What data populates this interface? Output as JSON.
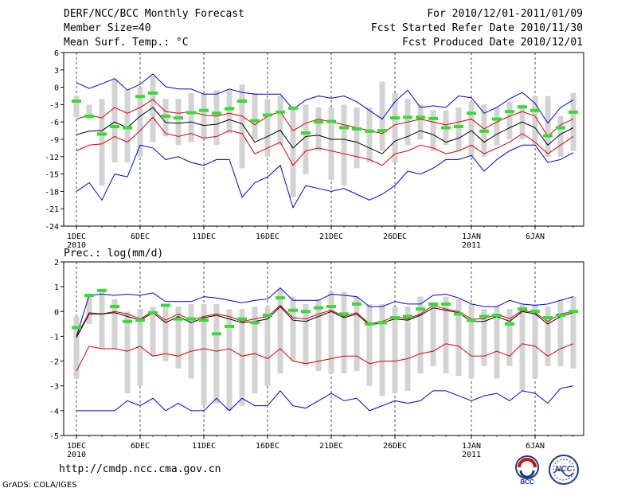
{
  "header": {
    "title": "DERF/NCC/BCC Monthly Forecast",
    "member_size": "Member Size=40",
    "variable": "Mean Surf. Temp.: °C",
    "period": "For 2010/12/01-2011/01/09",
    "started": "Fcst Started Refer Date 2010/11/30",
    "produced": "Fcst Produced Date 2010/12/01"
  },
  "footer": {
    "url": "http://cmdp.ncc.cma.gov.cn",
    "credit": "GrADS: COLA/IGES",
    "logo_left": "BCC",
    "logo_right": "NCC"
  },
  "colors": {
    "envelope": "#0000dd",
    "percentile": "#dd0000",
    "mean": "#000000",
    "box": "#d3d3d3",
    "marker": "#33dd33"
  },
  "chart_data": [
    {
      "type": "box-ensemble",
      "title": "Mean Surf. Temp.: °C",
      "ylabel": "°C",
      "ylim": [
        -24,
        6
      ],
      "yticks": [
        6,
        3,
        0,
        -3,
        -6,
        -9,
        -12,
        -15,
        -18,
        -21,
        -24
      ],
      "x": {
        "start": 1,
        "count": 40,
        "ticks": [
          {
            "day": 1,
            "label": "1DEC",
            "sub": "2010"
          },
          {
            "day": 6,
            "label": "6DEC",
            "sub": ""
          },
          {
            "day": 11,
            "label": "11DEC",
            "sub": ""
          },
          {
            "day": 16,
            "label": "16DEC",
            "sub": ""
          },
          {
            "day": 21,
            "label": "21DEC",
            "sub": ""
          },
          {
            "day": 26,
            "label": "26DEC",
            "sub": ""
          },
          {
            "day": 32,
            "label": "1JAN",
            "sub": "2011"
          },
          {
            "day": 37,
            "label": "6JAN",
            "sub": ""
          }
        ]
      },
      "box_low": [
        -5.2,
        -5.5,
        -17,
        -13,
        -13,
        -12,
        -9.5,
        -8.5,
        -10,
        -9.5,
        -9,
        -10,
        -8,
        -14,
        -9,
        -12,
        -10,
        -19,
        -15,
        -11,
        -16,
        -17,
        -14,
        -13,
        -11,
        -13,
        -10,
        -9,
        -11,
        -10,
        -11,
        -12,
        -12,
        -10,
        -9,
        -9,
        -10,
        -12,
        -12,
        -11
      ],
      "box_high": [
        -1.5,
        -3,
        -2,
        1.3,
        -0.5,
        0,
        2,
        -2,
        -2,
        -1,
        -1,
        -0.5,
        -0.5,
        0.5,
        -1,
        -2,
        -1.5,
        -3.5,
        -3,
        -3.5,
        -3.5,
        -3,
        -3.5,
        -3.5,
        1,
        -1,
        -2,
        -3,
        -4,
        -4,
        -3.5,
        -2.5,
        -3,
        -3.5,
        -2.5,
        -3,
        -1.5,
        -1.5,
        -5,
        -1
      ],
      "markers": [
        -2.4,
        -5,
        -8.1,
        -6.8,
        -7,
        -1.6,
        -1,
        -5,
        -5.3,
        -4.4,
        -4,
        -4.5,
        -3.7,
        -2.4,
        -5.8,
        -4.8,
        -4.3,
        -3.6,
        -7.9,
        -6,
        -5.9,
        -7,
        -7.2,
        -7.6,
        -7.5,
        -5.3,
        -5.2,
        -5.2,
        -5.4,
        -7,
        -6.8,
        -4.5,
        -7.6,
        -5.5,
        -4.2,
        -3.4,
        -4,
        -8.4,
        -7,
        -4.3
      ],
      "series": [
        {
          "name": "upper envelope",
          "color": "envelope",
          "values": [
            0.8,
            -0.2,
            0.6,
            1.5,
            -0.5,
            0.5,
            2.3,
            0.1,
            -0.3,
            -0.3,
            -1.2,
            -1.2,
            -0.3,
            -0.9,
            -1.2,
            -1.2,
            -1.2,
            -3.8,
            -2.2,
            -1.5,
            -1.9,
            -1.5,
            -2.5,
            -4,
            -5.5,
            -2.5,
            -0.5,
            -3.5,
            -3.2,
            -3.5,
            -1.5,
            -1.8,
            -4.5,
            -3.5,
            -2,
            -0.9,
            -2.8,
            -6.2,
            -3.5,
            -2.2
          ]
        },
        {
          "name": "upper percentile",
          "color": "percentile",
          "values": [
            -5.5,
            -4.8,
            -5.3,
            -3.5,
            -4.5,
            -3.5,
            -2.1,
            -4.2,
            -4.5,
            -4.2,
            -4.8,
            -5,
            -4.5,
            -5,
            -6.5,
            -5,
            -4.2,
            -7.5,
            -6.2,
            -5.5,
            -6,
            -6.5,
            -7,
            -7.5,
            -8,
            -6.5,
            -6,
            -5.5,
            -6,
            -6.5,
            -6,
            -5.5,
            -7.2,
            -6,
            -5,
            -4.2,
            -5,
            -8.5,
            -6.5,
            -5.5
          ]
        },
        {
          "name": "ensemble mean",
          "color": "mean",
          "values": [
            -8.2,
            -7.6,
            -7.5,
            -6,
            -7,
            -5,
            -3.5,
            -6.1,
            -6.2,
            -6,
            -6.6,
            -6.4,
            -5.6,
            -6.3,
            -9.5,
            -8.5,
            -7.4,
            -10.5,
            -8.5,
            -8.3,
            -9,
            -9,
            -9.5,
            -10.5,
            -11.5,
            -9.3,
            -8.5,
            -7.5,
            -8.2,
            -9.5,
            -8.8,
            -7.5,
            -9.5,
            -8.1,
            -7,
            -6,
            -7,
            -10,
            -8.1,
            -7
          ]
        },
        {
          "name": "lower percentile",
          "color": "percentile",
          "values": [
            -11,
            -10,
            -9.8,
            -8.5,
            -9.5,
            -7.5,
            -5.2,
            -8,
            -8.5,
            -8,
            -8.8,
            -8.5,
            -7.5,
            -8,
            -11.5,
            -10.5,
            -9.5,
            -13.5,
            -11,
            -10.5,
            -11,
            -11.5,
            -12,
            -12.5,
            -13.5,
            -11.5,
            -11,
            -10,
            -10.5,
            -11.5,
            -11,
            -10,
            -11.5,
            -10.5,
            -9.5,
            -8,
            -9.5,
            -11.5,
            -10,
            -8.5
          ]
        },
        {
          "name": "lower envelope",
          "color": "envelope",
          "values": [
            -18,
            -16.5,
            -19.5,
            -15,
            -15.5,
            -10,
            -10.5,
            -12.5,
            -12,
            -13,
            -13.5,
            -12.5,
            -12.5,
            -19,
            -16.5,
            -15.5,
            -13.5,
            -20.8,
            -17,
            -17.5,
            -18,
            -17.5,
            -18.5,
            -19.5,
            -18.5,
            -17,
            -14.5,
            -15,
            -14,
            -12.5,
            -12.5,
            -11.8,
            -14.5,
            -12.5,
            -11,
            -10,
            -10,
            -13,
            -12.5,
            -11.3
          ]
        }
      ]
    },
    {
      "type": "box-ensemble",
      "title": "Prec.: log(mm/d)",
      "ylabel": "log(mm/d)",
      "ylim": [
        -5,
        2
      ],
      "yticks": [
        2,
        1,
        0,
        -1,
        -2,
        -3,
        -4,
        -5
      ],
      "x": {
        "start": 1,
        "count": 40,
        "ticks": [
          {
            "day": 1,
            "label": "1DEC",
            "sub": "2010"
          },
          {
            "day": 6,
            "label": "6DEC",
            "sub": ""
          },
          {
            "day": 11,
            "label": "11DEC",
            "sub": ""
          },
          {
            "day": 16,
            "label": "16DEC",
            "sub": ""
          },
          {
            "day": 21,
            "label": "21DEC",
            "sub": ""
          },
          {
            "day": 26,
            "label": "26DEC",
            "sub": ""
          },
          {
            "day": 32,
            "label": "1JAN",
            "sub": "2011"
          },
          {
            "day": 37,
            "label": "6JAN",
            "sub": ""
          }
        ]
      },
      "box_low": [
        -2.7,
        -0.5,
        -1.5,
        -1.5,
        -3.3,
        -3,
        -1.8,
        -2,
        -2.3,
        -2.7,
        -3.8,
        -3.7,
        -4,
        -3.8,
        -3.3,
        -3,
        -2.5,
        -2,
        -2.2,
        -2.4,
        -2.5,
        -2.5,
        -2.4,
        -3,
        -3.4,
        -3.3,
        -3.2,
        -2.5,
        -2.2,
        -2.5,
        -2.6,
        -2.7,
        -2.2,
        -2.7,
        -2.2,
        -3.2,
        -2.7,
        -2.2,
        -2.2,
        -2.3
      ],
      "box_high": [
        -0.2,
        0.7,
        0.9,
        0.5,
        0,
        0.1,
        0.2,
        0.3,
        0.2,
        0.3,
        0.3,
        0.3,
        0.1,
        0.1,
        0.2,
        0.2,
        0.9,
        0.6,
        0.3,
        0.5,
        0.8,
        0.8,
        0.6,
        0.3,
        0.3,
        0.2,
        0.2,
        0.6,
        0.3,
        0.6,
        0.5,
        0.3,
        0.1,
        0.2,
        0.1,
        0.3,
        0.3,
        0.2,
        0.5,
        0.6
      ],
      "markers": [
        -0.65,
        0.65,
        0.85,
        0.2,
        -0.4,
        -0.35,
        -0.05,
        0.25,
        -0.3,
        -0.3,
        -0.35,
        -0.9,
        -0.6,
        -0.3,
        -0.45,
        -0.15,
        0.55,
        0.05,
        0,
        0.15,
        0.2,
        -0.1,
        0.3,
        -0.5,
        -0.45,
        -0.25,
        -0.2,
        0.1,
        0.3,
        0.3,
        -0.1,
        -0.35,
        -0.2,
        -0.15,
        -0.5,
        0.1,
        0,
        -0.25,
        -0.15,
        0
      ],
      "series": [
        {
          "name": "upper envelope",
          "color": "envelope",
          "values": [
            -1,
            0.65,
            0.7,
            0.65,
            0.7,
            0.65,
            0.75,
            0.4,
            0.4,
            0.4,
            0.6,
            0.55,
            0.45,
            0.35,
            0.45,
            0.5,
            0.95,
            0.45,
            0.45,
            0.45,
            0.7,
            0.65,
            0.6,
            0.2,
            0.2,
            0.4,
            0.3,
            0.3,
            0.65,
            0.7,
            0.55,
            0.3,
            0.2,
            0.2,
            0.45,
            0.3,
            0.25,
            0.3,
            0.45,
            0.6
          ]
        },
        {
          "name": "upper percentile",
          "color": "percentile",
          "values": [
            -1,
            -0.05,
            -0.1,
            0,
            -0.1,
            -0.3,
            0,
            -0.35,
            -0.1,
            -0.35,
            -0.2,
            -0.1,
            -0.2,
            -0.4,
            -0.3,
            -0.2,
            0.25,
            -0.25,
            -0.3,
            -0.1,
            0.05,
            -0.2,
            -0.05,
            -0.5,
            -0.4,
            -0.2,
            -0.3,
            -0.1,
            0.25,
            0.1,
            0,
            -0.3,
            -0.3,
            -0.1,
            -0.3,
            0.05,
            -0.05,
            -0.4,
            -0.1,
            0
          ]
        },
        {
          "name": "ensemble mean",
          "color": "mean",
          "values": [
            -1.05,
            -0.1,
            -0.1,
            -0.05,
            -0.2,
            -0.35,
            -0.05,
            -0.45,
            -0.2,
            -0.45,
            -0.25,
            -0.15,
            -0.3,
            -0.45,
            -0.4,
            -0.3,
            0.2,
            -0.35,
            -0.4,
            -0.2,
            0,
            -0.25,
            -0.1,
            -0.55,
            -0.45,
            -0.3,
            -0.35,
            -0.15,
            0.15,
            0.05,
            -0.05,
            -0.4,
            -0.4,
            -0.2,
            -0.4,
            0,
            -0.1,
            -0.5,
            -0.2,
            -0.05
          ]
        },
        {
          "name": "lower percentile",
          "color": "percentile",
          "values": [
            -2.4,
            -1.4,
            -1.5,
            -1.5,
            -1.6,
            -1.4,
            -1.8,
            -1.7,
            -1.8,
            -1.6,
            -1.5,
            -1.6,
            -1.5,
            -1.8,
            -1.7,
            -1.9,
            -1.5,
            -2,
            -2.1,
            -2,
            -1.9,
            -1.8,
            -1.8,
            -2.1,
            -2,
            -2,
            -1.9,
            -1.7,
            -1.6,
            -1.3,
            -1.4,
            -1.8,
            -1.8,
            -1.6,
            -1.8,
            -1.3,
            -1.4,
            -1.8,
            -1.5,
            -1.3
          ]
        },
        {
          "name": "lower envelope",
          "color": "envelope",
          "values": [
            -4,
            -4,
            -4,
            -4,
            -3.6,
            -3.8,
            -3.5,
            -4,
            -3.7,
            -4,
            -4,
            -3.5,
            -4,
            -3.5,
            -3.8,
            -3.8,
            -3.2,
            -3.8,
            -3.9,
            -3.6,
            -3.3,
            -3.6,
            -3.5,
            -4,
            -3.8,
            -3.6,
            -3.7,
            -3.6,
            -3.2,
            -3.2,
            -3.4,
            -3.6,
            -3.4,
            -3.3,
            -3.6,
            -3.2,
            -3.3,
            -3.7,
            -3.1,
            -3
          ]
        }
      ]
    }
  ]
}
